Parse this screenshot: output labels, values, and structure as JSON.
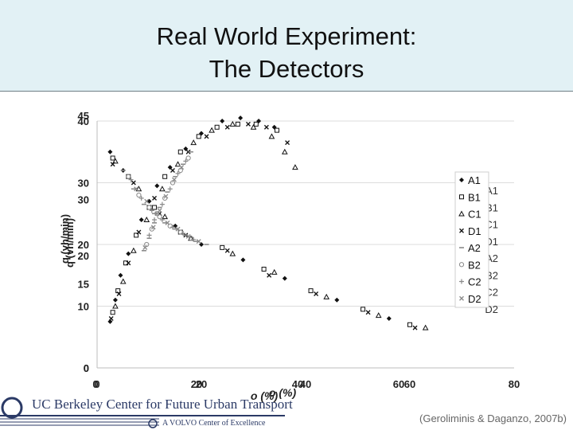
{
  "header": {
    "title_line1": "Real World Experiment:",
    "title_line2": "The Detectors"
  },
  "chart_data": {
    "type": "scatter",
    "title": "",
    "xlabel_front": "o (%)",
    "xlabel_back": "o (%)",
    "ylabel_front": "q (vh/min)",
    "ylabel_back": "q (vh/min)",
    "front_axes": {
      "xlim": [
        0,
        80
      ],
      "ylim": [
        0,
        40
      ],
      "x_ticks": [
        0,
        20,
        40,
        60,
        80
      ],
      "y_ticks": [
        0,
        10,
        20,
        30,
        40
      ],
      "x_tick_labels": [
        "0",
        "20",
        "40",
        "60",
        "80"
      ],
      "y_tick_labels": [
        "0",
        "10",
        "20",
        "30",
        "40"
      ]
    },
    "back_axes": {
      "xlim": [
        0,
        80
      ],
      "ylim": [
        0,
        45
      ],
      "x_ticks": [
        0,
        20,
        40,
        60
      ],
      "y_ticks": [
        0,
        15,
        20,
        30,
        45
      ],
      "x_tick_labels": [
        "0",
        "20",
        "40",
        "60"
      ],
      "y_tick_labels": [
        "0",
        "15",
        "20",
        "30",
        "45"
      ]
    },
    "grid": true,
    "legend_position": "right",
    "legend_front": [
      "A1",
      "B1",
      "C1",
      "D1",
      "A2",
      "B2",
      "C2",
      "D2"
    ],
    "legend_back": [
      "A1",
      "B1",
      "C1",
      "D1",
      "A2",
      "B2",
      "C2",
      "D2"
    ],
    "colors": {
      "region1": "#111111",
      "region2": "#8a8a8a"
    },
    "series": [
      {
        "name": "A1",
        "marker": "diamond",
        "region": 1,
        "points": [
          [
            2.5,
            7.5
          ],
          [
            3.5,
            11
          ],
          [
            4.5,
            15
          ],
          [
            6,
            18.5
          ],
          [
            8.5,
            24
          ],
          [
            11.5,
            29.5
          ],
          [
            14,
            32.5
          ],
          [
            17,
            35.5
          ],
          [
            20,
            38
          ],
          [
            24,
            40
          ],
          [
            27.5,
            40.5
          ],
          [
            31,
            40
          ],
          [
            34,
            39
          ],
          [
            2.5,
            35
          ],
          [
            5,
            32
          ],
          [
            10,
            27
          ],
          [
            15,
            23
          ],
          [
            20,
            20
          ],
          [
            28,
            17.5
          ],
          [
            36,
            14.5
          ],
          [
            46,
            11
          ],
          [
            56,
            8
          ]
        ]
      },
      {
        "name": "B1",
        "marker": "square",
        "region": 1,
        "points": [
          [
            3,
            9
          ],
          [
            4,
            12.5
          ],
          [
            5.5,
            17
          ],
          [
            7.5,
            21.5
          ],
          [
            10,
            26
          ],
          [
            13,
            31
          ],
          [
            16,
            35
          ],
          [
            19.5,
            37.5
          ],
          [
            23,
            39
          ],
          [
            27,
            39.5
          ],
          [
            30.5,
            39.5
          ],
          [
            34.5,
            38.5
          ],
          [
            3,
            34
          ],
          [
            6,
            31
          ],
          [
            11,
            26
          ],
          [
            16,
            22
          ],
          [
            24,
            19.5
          ],
          [
            32,
            16
          ],
          [
            41,
            12.5
          ],
          [
            51,
            9.5
          ],
          [
            60,
            7
          ]
        ]
      },
      {
        "name": "C1",
        "marker": "triangle",
        "region": 1,
        "points": [
          [
            3.5,
            10
          ],
          [
            5,
            14
          ],
          [
            7,
            19
          ],
          [
            9.5,
            24
          ],
          [
            12.5,
            29
          ],
          [
            15.5,
            33
          ],
          [
            18.5,
            36.5
          ],
          [
            22,
            38.5
          ],
          [
            26,
            39.5
          ],
          [
            30,
            39
          ],
          [
            33.5,
            37.5
          ],
          [
            36,
            35
          ],
          [
            38,
            32.5
          ],
          [
            3.5,
            33.5
          ],
          [
            8,
            29
          ],
          [
            13,
            24.5
          ],
          [
            18,
            21
          ],
          [
            26,
            18.5
          ],
          [
            34,
            15.5
          ],
          [
            44,
            11.5
          ],
          [
            54,
            8.5
          ],
          [
            63,
            6.5
          ]
        ]
      },
      {
        "name": "D1",
        "marker": "x",
        "region": 1,
        "points": [
          [
            2.7,
            8
          ],
          [
            4.2,
            12
          ],
          [
            6,
            17
          ],
          [
            8,
            22
          ],
          [
            11,
            27.5
          ],
          [
            14.5,
            32
          ],
          [
            17.5,
            35
          ],
          [
            21,
            37.5
          ],
          [
            25,
            39
          ],
          [
            29,
            39.5
          ],
          [
            32.5,
            39
          ],
          [
            36.5,
            36.5
          ],
          [
            3,
            33
          ],
          [
            7,
            30
          ],
          [
            12,
            25
          ],
          [
            17,
            21.5
          ],
          [
            25,
            19
          ],
          [
            33,
            15
          ],
          [
            42,
            12
          ],
          [
            52,
            9
          ],
          [
            61,
            6.5
          ]
        ]
      },
      {
        "name": "A2",
        "marker": "dash",
        "region": 2,
        "points": [
          [
            5,
            32
          ],
          [
            7,
            29
          ],
          [
            9,
            26.5
          ],
          [
            11,
            25
          ],
          [
            13,
            23.5
          ],
          [
            15,
            22.5
          ],
          [
            17,
            21.5
          ],
          [
            19,
            20.5
          ],
          [
            21,
            20
          ],
          [
            9,
            19
          ],
          [
            10,
            21
          ],
          [
            11,
            23.5
          ],
          [
            12,
            26
          ],
          [
            13.5,
            28.5
          ],
          [
            15,
            31
          ],
          [
            16.5,
            33
          ],
          [
            18,
            35
          ]
        ]
      },
      {
        "name": "B2",
        "marker": "circle",
        "region": 2,
        "points": [
          [
            6,
            31
          ],
          [
            8,
            28
          ],
          [
            10,
            26
          ],
          [
            12,
            24.5
          ],
          [
            14,
            23
          ],
          [
            16,
            22
          ],
          [
            18,
            21
          ],
          [
            9.5,
            20
          ],
          [
            10.5,
            22.5
          ],
          [
            11.5,
            25
          ],
          [
            13,
            27.5
          ],
          [
            14.5,
            30
          ],
          [
            16,
            32
          ],
          [
            17.5,
            34
          ]
        ]
      },
      {
        "name": "C2",
        "marker": "plus",
        "region": 2,
        "points": [
          [
            6.5,
            30.5
          ],
          [
            8.5,
            27.5
          ],
          [
            10.5,
            25.5
          ],
          [
            12.5,
            24
          ],
          [
            14.5,
            22.8
          ],
          [
            16.5,
            21.8
          ],
          [
            18.5,
            20.8
          ],
          [
            10,
            21.5
          ],
          [
            11,
            24
          ],
          [
            12.5,
            26.5
          ],
          [
            14,
            29
          ],
          [
            15.5,
            31.5
          ],
          [
            17,
            33.5
          ]
        ]
      },
      {
        "name": "D2",
        "marker": "x",
        "region": 2,
        "points": [
          [
            7.5,
            29
          ],
          [
            9.5,
            27
          ],
          [
            11.5,
            25
          ],
          [
            13.5,
            23.5
          ],
          [
            15.5,
            22.5
          ],
          [
            17.5,
            21.3
          ],
          [
            19.5,
            20.5
          ],
          [
            9.2,
            19.5
          ],
          [
            10.8,
            22.8
          ],
          [
            12,
            25.5
          ],
          [
            13.2,
            27.8
          ],
          [
            14.8,
            30.5
          ],
          [
            16.2,
            32.5
          ]
        ]
      }
    ]
  },
  "footer": {
    "logo_text": "UC Berkeley Center for Future Urban Transport",
    "logo_subtext": "A VOLVO Center of Excellence",
    "citation": "(Geroliminis & Daganzo, 2007b)"
  }
}
